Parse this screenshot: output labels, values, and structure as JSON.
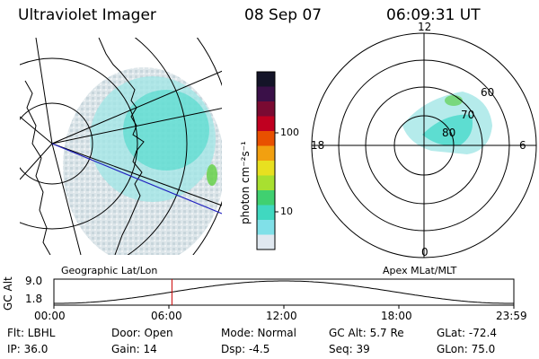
{
  "header": {
    "instrument": "Ultraviolet Imager",
    "date": "08 Sep 07",
    "time": "06:09:31 UT"
  },
  "colorbar": {
    "label": "photon cm⁻²s⁻¹",
    "ticks": [
      "100",
      "10"
    ],
    "colors": [
      "#141428",
      "#3a1048",
      "#7a0a32",
      "#c00020",
      "#e85000",
      "#f2a010",
      "#e8e020",
      "#a8e030",
      "#40d070",
      "#40d8c0",
      "#80e0e8",
      "#e0e8f0"
    ]
  },
  "geo_map": {
    "label": "Geographic Lat/Lon"
  },
  "polar_plot": {
    "label": "Apex MLat/MLT",
    "mlt_labels": {
      "top": "12",
      "left": "18",
      "right": "6",
      "bottom": "0"
    },
    "lat_labels": [
      "60",
      "70",
      "80"
    ]
  },
  "altitude_plot": {
    "ylabel": "GC Alt",
    "yticks": [
      "9.0",
      "1.8"
    ],
    "xticks": [
      "00:00",
      "06:00",
      "12:00",
      "18:00",
      "23:59"
    ],
    "current_time_fraction": 0.2566
  },
  "status": {
    "flt": "Flt: LBHL",
    "ip": "IP: 36.0",
    "door": "Door: Open",
    "gain": "Gain: 14",
    "mode": "Mode: Normal",
    "dsp": "Dsp:   -4.5",
    "gc_alt": "GC Alt: 5.7 Re",
    "seq": "Seq: 39",
    "glat": "GLat: -72.4",
    "glon": "GLon:  75.0"
  },
  "colors": {
    "aurora": "#40d8c8",
    "marker": "#cc0000",
    "track": "#2020c0"
  }
}
